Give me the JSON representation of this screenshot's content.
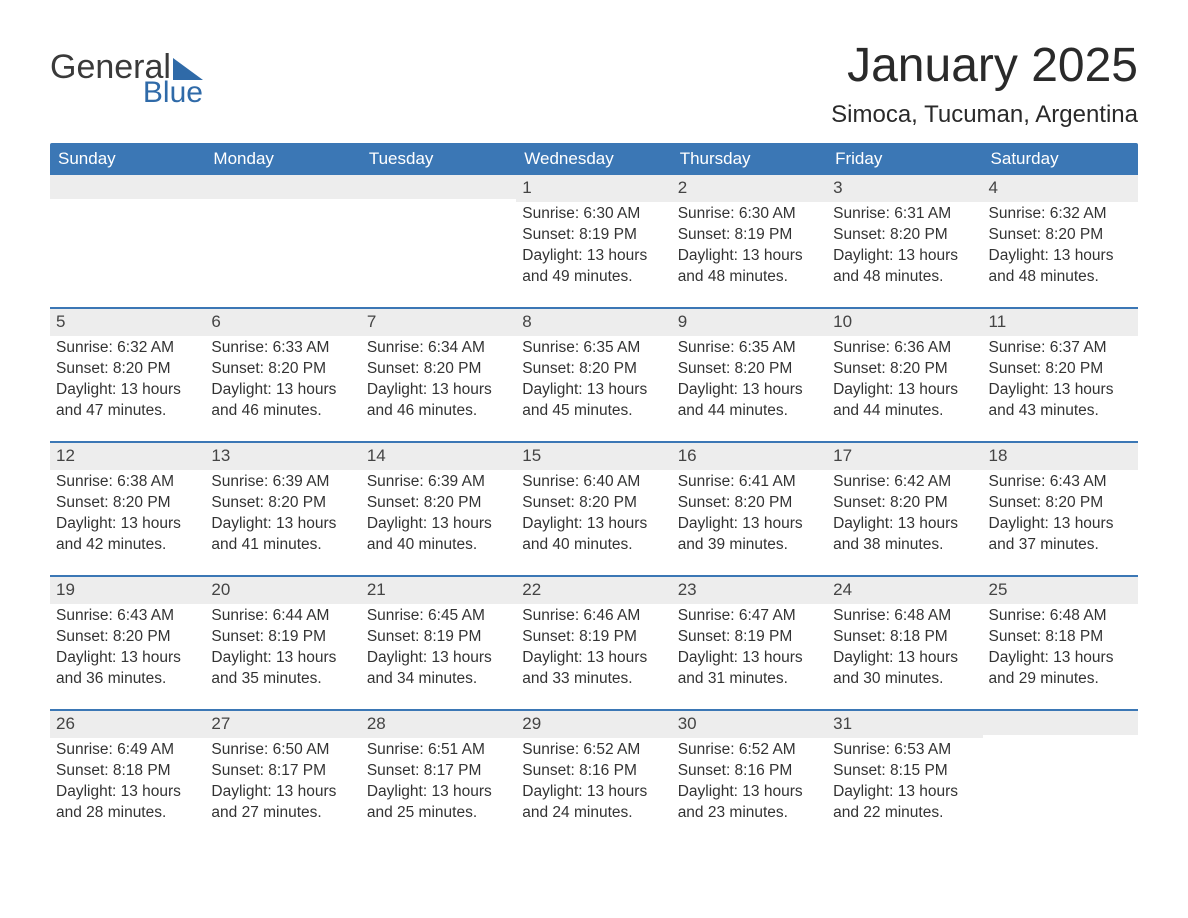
{
  "logo": {
    "word1": "General",
    "word2": "Blue"
  },
  "title": "January 2025",
  "location": "Simoca, Tucuman, Argentina",
  "colors": {
    "header_bg": "#3b77b5",
    "header_text": "#ffffff",
    "daynum_bg": "#ededed",
    "text": "#333333",
    "accent": "#2f6aa8"
  },
  "day_labels": [
    "Sunday",
    "Monday",
    "Tuesday",
    "Wednesday",
    "Thursday",
    "Friday",
    "Saturday"
  ],
  "weeks": [
    [
      {
        "n": "",
        "sr": "",
        "ss": "",
        "dl": ""
      },
      {
        "n": "",
        "sr": "",
        "ss": "",
        "dl": ""
      },
      {
        "n": "",
        "sr": "",
        "ss": "",
        "dl": ""
      },
      {
        "n": "1",
        "sr": "Sunrise: 6:30 AM",
        "ss": "Sunset: 8:19 PM",
        "dl": "Daylight: 13 hours and 49 minutes."
      },
      {
        "n": "2",
        "sr": "Sunrise: 6:30 AM",
        "ss": "Sunset: 8:19 PM",
        "dl": "Daylight: 13 hours and 48 minutes."
      },
      {
        "n": "3",
        "sr": "Sunrise: 6:31 AM",
        "ss": "Sunset: 8:20 PM",
        "dl": "Daylight: 13 hours and 48 minutes."
      },
      {
        "n": "4",
        "sr": "Sunrise: 6:32 AM",
        "ss": "Sunset: 8:20 PM",
        "dl": "Daylight: 13 hours and 48 minutes."
      }
    ],
    [
      {
        "n": "5",
        "sr": "Sunrise: 6:32 AM",
        "ss": "Sunset: 8:20 PM",
        "dl": "Daylight: 13 hours and 47 minutes."
      },
      {
        "n": "6",
        "sr": "Sunrise: 6:33 AM",
        "ss": "Sunset: 8:20 PM",
        "dl": "Daylight: 13 hours and 46 minutes."
      },
      {
        "n": "7",
        "sr": "Sunrise: 6:34 AM",
        "ss": "Sunset: 8:20 PM",
        "dl": "Daylight: 13 hours and 46 minutes."
      },
      {
        "n": "8",
        "sr": "Sunrise: 6:35 AM",
        "ss": "Sunset: 8:20 PM",
        "dl": "Daylight: 13 hours and 45 minutes."
      },
      {
        "n": "9",
        "sr": "Sunrise: 6:35 AM",
        "ss": "Sunset: 8:20 PM",
        "dl": "Daylight: 13 hours and 44 minutes."
      },
      {
        "n": "10",
        "sr": "Sunrise: 6:36 AM",
        "ss": "Sunset: 8:20 PM",
        "dl": "Daylight: 13 hours and 44 minutes."
      },
      {
        "n": "11",
        "sr": "Sunrise: 6:37 AM",
        "ss": "Sunset: 8:20 PM",
        "dl": "Daylight: 13 hours and 43 minutes."
      }
    ],
    [
      {
        "n": "12",
        "sr": "Sunrise: 6:38 AM",
        "ss": "Sunset: 8:20 PM",
        "dl": "Daylight: 13 hours and 42 minutes."
      },
      {
        "n": "13",
        "sr": "Sunrise: 6:39 AM",
        "ss": "Sunset: 8:20 PM",
        "dl": "Daylight: 13 hours and 41 minutes."
      },
      {
        "n": "14",
        "sr": "Sunrise: 6:39 AM",
        "ss": "Sunset: 8:20 PM",
        "dl": "Daylight: 13 hours and 40 minutes."
      },
      {
        "n": "15",
        "sr": "Sunrise: 6:40 AM",
        "ss": "Sunset: 8:20 PM",
        "dl": "Daylight: 13 hours and 40 minutes."
      },
      {
        "n": "16",
        "sr": "Sunrise: 6:41 AM",
        "ss": "Sunset: 8:20 PM",
        "dl": "Daylight: 13 hours and 39 minutes."
      },
      {
        "n": "17",
        "sr": "Sunrise: 6:42 AM",
        "ss": "Sunset: 8:20 PM",
        "dl": "Daylight: 13 hours and 38 minutes."
      },
      {
        "n": "18",
        "sr": "Sunrise: 6:43 AM",
        "ss": "Sunset: 8:20 PM",
        "dl": "Daylight: 13 hours and 37 minutes."
      }
    ],
    [
      {
        "n": "19",
        "sr": "Sunrise: 6:43 AM",
        "ss": "Sunset: 8:20 PM",
        "dl": "Daylight: 13 hours and 36 minutes."
      },
      {
        "n": "20",
        "sr": "Sunrise: 6:44 AM",
        "ss": "Sunset: 8:19 PM",
        "dl": "Daylight: 13 hours and 35 minutes."
      },
      {
        "n": "21",
        "sr": "Sunrise: 6:45 AM",
        "ss": "Sunset: 8:19 PM",
        "dl": "Daylight: 13 hours and 34 minutes."
      },
      {
        "n": "22",
        "sr": "Sunrise: 6:46 AM",
        "ss": "Sunset: 8:19 PM",
        "dl": "Daylight: 13 hours and 33 minutes."
      },
      {
        "n": "23",
        "sr": "Sunrise: 6:47 AM",
        "ss": "Sunset: 8:19 PM",
        "dl": "Daylight: 13 hours and 31 minutes."
      },
      {
        "n": "24",
        "sr": "Sunrise: 6:48 AM",
        "ss": "Sunset: 8:18 PM",
        "dl": "Daylight: 13 hours and 30 minutes."
      },
      {
        "n": "25",
        "sr": "Sunrise: 6:48 AM",
        "ss": "Sunset: 8:18 PM",
        "dl": "Daylight: 13 hours and 29 minutes."
      }
    ],
    [
      {
        "n": "26",
        "sr": "Sunrise: 6:49 AM",
        "ss": "Sunset: 8:18 PM",
        "dl": "Daylight: 13 hours and 28 minutes."
      },
      {
        "n": "27",
        "sr": "Sunrise: 6:50 AM",
        "ss": "Sunset: 8:17 PM",
        "dl": "Daylight: 13 hours and 27 minutes."
      },
      {
        "n": "28",
        "sr": "Sunrise: 6:51 AM",
        "ss": "Sunset: 8:17 PM",
        "dl": "Daylight: 13 hours and 25 minutes."
      },
      {
        "n": "29",
        "sr": "Sunrise: 6:52 AM",
        "ss": "Sunset: 8:16 PM",
        "dl": "Daylight: 13 hours and 24 minutes."
      },
      {
        "n": "30",
        "sr": "Sunrise: 6:52 AM",
        "ss": "Sunset: 8:16 PM",
        "dl": "Daylight: 13 hours and 23 minutes."
      },
      {
        "n": "31",
        "sr": "Sunrise: 6:53 AM",
        "ss": "Sunset: 8:15 PM",
        "dl": "Daylight: 13 hours and 22 minutes."
      },
      {
        "n": "",
        "sr": "",
        "ss": "",
        "dl": ""
      }
    ]
  ]
}
